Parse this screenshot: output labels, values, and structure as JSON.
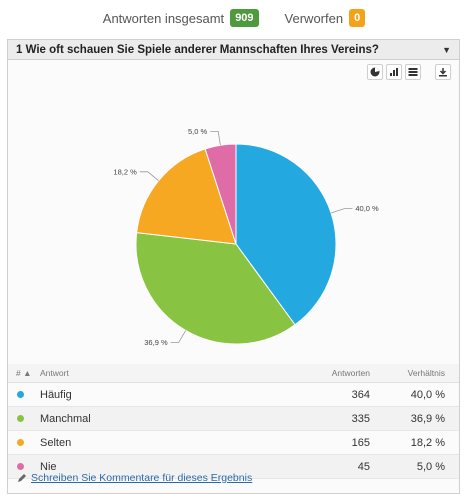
{
  "summary": {
    "total_label": "Antworten insgesamt",
    "total_value": "909",
    "discarded_label": "Verworfen",
    "discarded_value": "0"
  },
  "question": {
    "title": "1 Wie oft schauen Sie Spiele anderer Mannschaften Ihres Vereins?"
  },
  "toolbar": {
    "icons": [
      "pie-chart-icon",
      "bar-chart-icon",
      "table-icon",
      "download-icon"
    ]
  },
  "chart_data": {
    "type": "pie",
    "categories": [
      "Häufig",
      "Manchmal",
      "Selten",
      "Nie"
    ],
    "values": [
      40.0,
      36.9,
      18.2,
      5.0
    ],
    "labels": [
      "40,0 %",
      "36,9 %",
      "18,2 %",
      "5,0 %"
    ],
    "colors": [
      "#23a8df",
      "#88c441",
      "#f7a823",
      "#e06ca7"
    ]
  },
  "table": {
    "headers": {
      "index": "#",
      "answer": "Antwort",
      "count": "Antworten",
      "ratio": "Verhältnis"
    },
    "rows": [
      {
        "color": "#23a8df",
        "label": "Häufig",
        "count": "364",
        "ratio": "40,0 %"
      },
      {
        "color": "#88c441",
        "label": "Manchmal",
        "count": "335",
        "ratio": "36,9 %"
      },
      {
        "color": "#f7a823",
        "label": "Selten",
        "count": "165",
        "ratio": "18,2 %"
      },
      {
        "color": "#e06ca7",
        "label": "Nie",
        "count": "45",
        "ratio": "5,0 %"
      }
    ]
  },
  "comment": {
    "link_text": "Schreiben Sie Kommentare für dieses Ergebnis"
  }
}
